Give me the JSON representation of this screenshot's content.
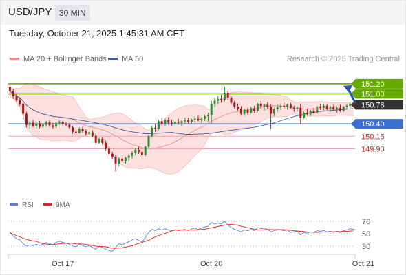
{
  "header": {
    "pair": "USD/JPY",
    "timeframe": "30 MIN"
  },
  "datetime": "Tuesday, October 21, 2025 1:45:31 AM CET",
  "legend": {
    "ma20_label": "MA 20 + Bollinger Bands",
    "ma50_label": "MA 50",
    "ma20_color": "#f08c8c",
    "ma50_color": "#3c5c96"
  },
  "credit": "Research © 2025 Trading Central",
  "rsi_legend": {
    "rsi_label": "RSI",
    "ma_label": "9MA",
    "rsi_color": "#5b7fd6",
    "ma_color": "#dd2222"
  },
  "colors": {
    "up": "#2e8b2e",
    "down": "#a81818",
    "resistance": "#66aa00",
    "support": "#3a6fd0",
    "target": "#f3a4a4",
    "arrow": "#2457a3",
    "current": "#333333"
  },
  "chart_data": {
    "type": "candlestick",
    "x_ticks": [
      "Oct 17",
      "Oct 20",
      "Oct 21"
    ],
    "x_tick_index": [
      16,
      61,
      107
    ],
    "price_ylim": [
      149.0,
      151.5
    ],
    "levels": [
      {
        "value": "151.20",
        "kind": "resistance"
      },
      {
        "value": "151.00",
        "kind": "resistance"
      },
      {
        "value": "150.78",
        "kind": "current"
      },
      {
        "value": "150.40",
        "kind": "support"
      },
      {
        "value": "150.15",
        "kind": "target"
      },
      {
        "value": "149.90",
        "kind": "target"
      }
    ],
    "ohlc": [
      [
        151.13,
        151.18,
        150.96,
        151.05
      ],
      [
        151.05,
        151.1,
        150.9,
        150.95
      ],
      [
        150.95,
        151.01,
        150.84,
        150.87
      ],
      [
        150.87,
        150.92,
        150.76,
        150.8
      ],
      [
        150.8,
        150.84,
        150.55,
        150.6
      ],
      [
        150.6,
        150.64,
        150.33,
        150.38
      ],
      [
        150.38,
        150.46,
        150.3,
        150.42
      ],
      [
        150.42,
        150.48,
        150.33,
        150.36
      ],
      [
        150.36,
        150.44,
        150.3,
        150.4
      ],
      [
        150.4,
        150.46,
        150.31,
        150.34
      ],
      [
        150.34,
        150.4,
        150.29,
        150.38
      ],
      [
        150.38,
        150.46,
        150.34,
        150.43
      ],
      [
        150.43,
        150.47,
        150.34,
        150.37
      ],
      [
        150.37,
        150.42,
        150.3,
        150.34
      ],
      [
        150.34,
        150.45,
        150.31,
        150.42
      ],
      [
        150.42,
        150.47,
        150.38,
        150.44
      ],
      [
        150.44,
        150.46,
        150.36,
        150.4
      ],
      [
        150.4,
        150.44,
        150.35,
        150.38
      ],
      [
        150.38,
        150.41,
        150.3,
        150.33
      ],
      [
        150.33,
        150.36,
        150.2,
        150.24
      ],
      [
        150.24,
        150.28,
        150.18,
        150.22
      ],
      [
        150.22,
        150.33,
        150.2,
        150.3
      ],
      [
        150.3,
        150.34,
        150.22,
        150.25
      ],
      [
        150.25,
        150.29,
        150.16,
        150.2
      ],
      [
        150.2,
        150.26,
        150.17,
        150.23
      ],
      [
        150.23,
        150.27,
        150.12,
        150.16
      ],
      [
        150.16,
        150.21,
        149.98,
        150.02
      ],
      [
        150.02,
        150.12,
        150.0,
        150.1
      ],
      [
        150.1,
        150.13,
        149.98,
        150.02
      ],
      [
        150.02,
        150.06,
        149.86,
        149.9
      ],
      [
        149.9,
        149.95,
        149.76,
        149.8
      ],
      [
        149.8,
        149.84,
        149.7,
        149.74
      ],
      [
        149.74,
        149.78,
        149.45,
        149.6
      ],
      [
        149.6,
        149.73,
        149.55,
        149.7
      ],
      [
        149.7,
        149.78,
        149.62,
        149.66
      ],
      [
        149.66,
        149.74,
        149.6,
        149.72
      ],
      [
        149.72,
        149.8,
        149.66,
        149.76
      ],
      [
        149.76,
        149.86,
        149.7,
        149.82
      ],
      [
        149.82,
        149.92,
        149.77,
        149.88
      ],
      [
        149.88,
        149.94,
        149.8,
        149.84
      ],
      [
        149.84,
        149.88,
        149.74,
        149.78
      ],
      [
        149.78,
        149.96,
        149.75,
        149.94
      ],
      [
        149.94,
        150.18,
        149.9,
        150.15
      ],
      [
        150.15,
        150.36,
        150.12,
        150.32
      ],
      [
        150.32,
        150.4,
        150.24,
        150.3
      ],
      [
        150.3,
        150.48,
        150.28,
        150.45
      ],
      [
        150.45,
        150.52,
        150.36,
        150.4
      ],
      [
        150.4,
        150.5,
        150.35,
        150.47
      ],
      [
        150.47,
        150.53,
        150.38,
        150.42
      ],
      [
        150.42,
        150.48,
        150.36,
        150.4
      ],
      [
        150.4,
        150.46,
        150.35,
        150.44
      ],
      [
        150.44,
        150.5,
        150.38,
        150.42
      ],
      [
        150.42,
        150.47,
        150.36,
        150.45
      ],
      [
        150.45,
        150.52,
        150.4,
        150.47
      ],
      [
        150.47,
        150.52,
        150.41,
        150.44
      ],
      [
        150.44,
        150.5,
        150.4,
        150.48
      ],
      [
        150.48,
        150.55,
        150.43,
        150.5
      ],
      [
        150.5,
        150.56,
        150.45,
        150.47
      ],
      [
        150.47,
        150.53,
        150.42,
        150.5
      ],
      [
        150.5,
        150.58,
        150.46,
        150.55
      ],
      [
        150.55,
        150.62,
        150.44,
        150.58
      ],
      [
        150.58,
        150.86,
        150.4,
        150.8
      ],
      [
        150.8,
        150.92,
        150.74,
        150.86
      ],
      [
        150.86,
        150.96,
        150.8,
        150.9
      ],
      [
        150.9,
        150.98,
        150.82,
        150.88
      ],
      [
        150.88,
        151.14,
        150.85,
        151.02
      ],
      [
        151.02,
        151.06,
        150.88,
        150.92
      ],
      [
        150.92,
        150.95,
        150.78,
        150.82
      ],
      [
        150.82,
        150.86,
        150.7,
        150.74
      ],
      [
        150.74,
        150.8,
        150.66,
        150.7
      ],
      [
        150.7,
        150.75,
        150.56,
        150.6
      ],
      [
        150.6,
        150.7,
        150.56,
        150.68
      ],
      [
        150.68,
        150.72,
        150.58,
        150.62
      ],
      [
        150.62,
        150.74,
        150.6,
        150.71
      ],
      [
        150.71,
        150.76,
        150.62,
        150.66
      ],
      [
        150.66,
        150.82,
        150.64,
        150.8
      ],
      [
        150.8,
        150.86,
        150.7,
        150.75
      ],
      [
        150.75,
        150.8,
        150.66,
        150.78
      ],
      [
        150.78,
        150.83,
        150.7,
        150.74
      ],
      [
        150.74,
        150.79,
        150.3,
        150.6
      ],
      [
        150.6,
        150.72,
        150.55,
        150.69
      ],
      [
        150.69,
        150.78,
        150.64,
        150.73
      ],
      [
        150.73,
        150.8,
        150.68,
        150.76
      ],
      [
        150.76,
        150.82,
        150.7,
        150.74
      ],
      [
        150.74,
        150.8,
        150.68,
        150.78
      ],
      [
        150.78,
        150.82,
        150.7,
        150.72
      ],
      [
        150.72,
        150.76,
        150.64,
        150.7
      ],
      [
        150.7,
        150.75,
        150.64,
        150.72
      ],
      [
        150.72,
        150.8,
        150.4,
        150.52
      ],
      [
        150.52,
        150.64,
        150.5,
        150.62
      ],
      [
        150.62,
        150.7,
        150.56,
        150.59
      ],
      [
        150.59,
        150.68,
        150.55,
        150.66
      ],
      [
        150.66,
        150.72,
        150.6,
        150.62
      ],
      [
        150.62,
        150.76,
        150.6,
        150.74
      ],
      [
        150.74,
        150.79,
        150.68,
        150.72
      ],
      [
        150.72,
        150.8,
        150.66,
        150.76
      ],
      [
        150.76,
        150.79,
        150.67,
        150.7
      ],
      [
        150.7,
        150.76,
        150.64,
        150.73
      ],
      [
        150.73,
        150.78,
        150.66,
        150.69
      ],
      [
        150.69,
        150.74,
        150.62,
        150.72
      ],
      [
        150.72,
        150.78,
        150.64,
        150.66
      ],
      [
        150.66,
        150.76,
        150.63,
        150.74
      ],
      [
        150.74,
        150.79,
        150.7,
        150.76
      ],
      [
        150.76,
        150.82,
        150.72,
        150.79
      ],
      [
        150.79,
        150.82,
        150.74,
        150.78
      ]
    ],
    "rsi": {
      "ylim": [
        20,
        80
      ],
      "ticks": [
        "70",
        "50",
        "30"
      ],
      "values": [
        52,
        46,
        42,
        40,
        34,
        30,
        32,
        31,
        33,
        31,
        33,
        36,
        34,
        32,
        36,
        38,
        36,
        35,
        33,
        30,
        29,
        33,
        31,
        29,
        31,
        28,
        25,
        30,
        28,
        25,
        23,
        22,
        28,
        34,
        32,
        35,
        37,
        40,
        42,
        39,
        37,
        44,
        52,
        57,
        55,
        58,
        56,
        58,
        56,
        55,
        56,
        55,
        56,
        57,
        55,
        58,
        59,
        57,
        59,
        61,
        62,
        68,
        66,
        67,
        66,
        70,
        64,
        60,
        57,
        55,
        53,
        56,
        55,
        57,
        55,
        60,
        58,
        59,
        57,
        53,
        55,
        56,
        56,
        55,
        56,
        52,
        53,
        54,
        48,
        52,
        51,
        53,
        52,
        55,
        54,
        55,
        53,
        54,
        52,
        54,
        52,
        55,
        56,
        58,
        57
      ]
    }
  }
}
